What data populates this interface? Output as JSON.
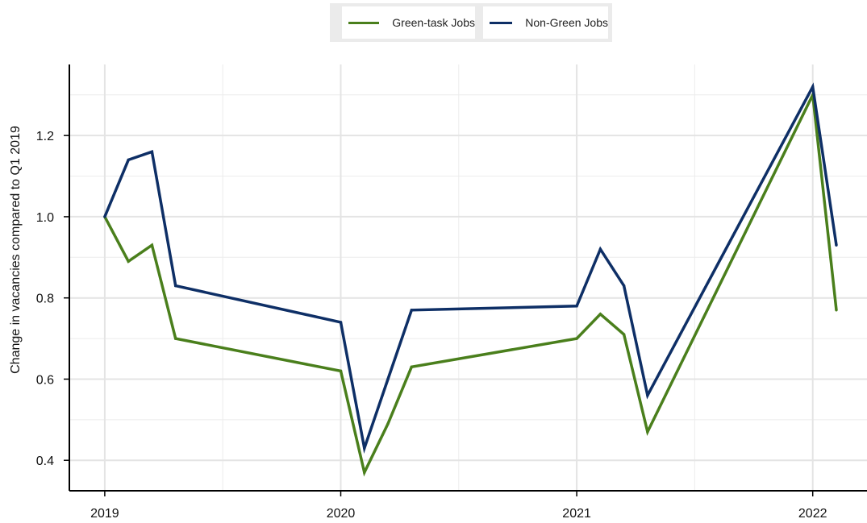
{
  "chart_data": {
    "type": "line",
    "title": "",
    "xlabel": "",
    "ylabel": "Change in vacancies compared to Q1 2019",
    "xlim": [
      2018.85,
      2022.23
    ],
    "ylim": [
      0.325,
      1.375
    ],
    "x_ticks": [
      {
        "value": 2019,
        "label": "2019"
      },
      {
        "value": 2020,
        "label": "2020"
      },
      {
        "value": 2021,
        "label": "2021"
      },
      {
        "value": 2022,
        "label": "2022"
      }
    ],
    "y_ticks": [
      {
        "value": 0.4,
        "label": "0.4"
      },
      {
        "value": 0.6,
        "label": "0.6"
      },
      {
        "value": 0.8,
        "label": "0.8"
      },
      {
        "value": 1.0,
        "label": "1.0"
      },
      {
        "value": 1.2,
        "label": "1.2"
      }
    ],
    "grid": true,
    "legend_position": "top-center",
    "series": [
      {
        "name": "Green-task Jobs",
        "color": "#4a7f1c",
        "x": [
          2019.0,
          2019.1,
          2019.2,
          2019.3,
          2020.0,
          2020.1,
          2020.2,
          2020.3,
          2021.0,
          2021.1,
          2021.2,
          2021.3,
          2022.0,
          2022.1
        ],
        "y": [
          1.0,
          0.89,
          0.93,
          0.7,
          0.62,
          0.37,
          0.49,
          0.63,
          0.7,
          0.76,
          0.71,
          0.47,
          1.3,
          0.77
        ]
      },
      {
        "name": "Non-Green Jobs",
        "color": "#0e2f66",
        "x": [
          2019.0,
          2019.1,
          2019.2,
          2019.3,
          2020.0,
          2020.1,
          2020.2,
          2020.3,
          2021.0,
          2021.1,
          2021.2,
          2021.3,
          2022.0,
          2022.1
        ],
        "y": [
          1.0,
          1.14,
          1.16,
          0.83,
          0.74,
          0.43,
          0.6,
          0.77,
          0.78,
          0.92,
          0.83,
          0.56,
          1.32,
          0.93
        ]
      }
    ]
  }
}
